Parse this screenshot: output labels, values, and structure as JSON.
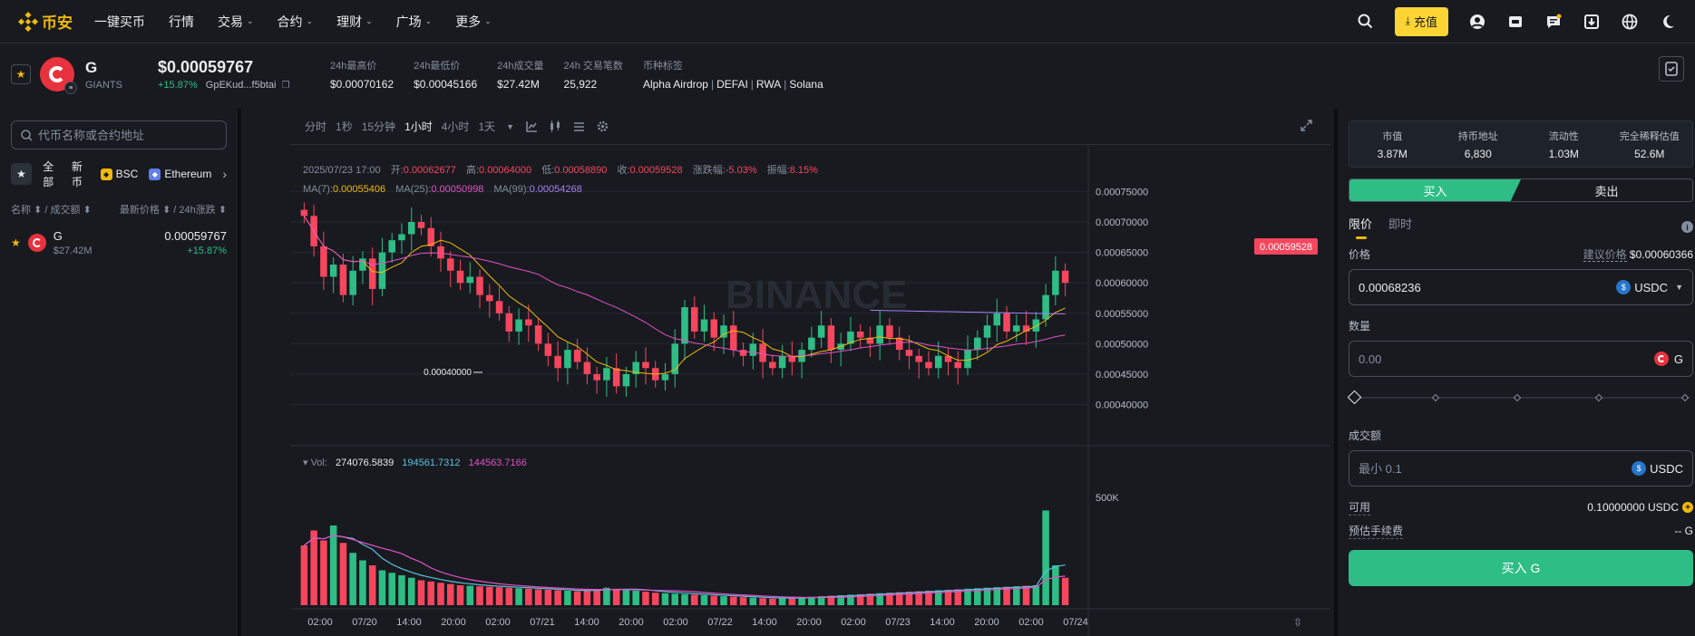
{
  "nav": {
    "logo": "币安",
    "items": [
      {
        "label": "一键买币",
        "chev": false
      },
      {
        "label": "行情",
        "chev": false
      },
      {
        "label": "交易",
        "chev": true
      },
      {
        "label": "合约",
        "chev": true
      },
      {
        "label": "理财",
        "chev": true
      },
      {
        "label": "广场",
        "chev": true
      },
      {
        "label": "更多",
        "chev": true
      }
    ],
    "deposit": "充值",
    "icons": [
      "search-icon",
      "user-icon",
      "wallet-icon",
      "message-icon",
      "download-icon",
      "globe-icon",
      "moon-icon"
    ],
    "accent": "#fcd535"
  },
  "ticker": {
    "symbol": "G",
    "name": "GIANTS",
    "price": "$0.00059767",
    "change": "+15.87%",
    "address": "GpEKud...f5btai",
    "stats": [
      {
        "label": "24h最高价",
        "value": "$0.00070162"
      },
      {
        "label": "24h最低价",
        "value": "$0.00045166"
      },
      {
        "label": "24h成交量",
        "value": "$27.42M"
      },
      {
        "label": "24h 交易笔数",
        "value": "25,922"
      }
    ],
    "tags_label": "币种标签",
    "tags": [
      "Alpha Airdrop",
      "DEFAI",
      "RWA",
      "Solana"
    ]
  },
  "left": {
    "search_placeholder": "代币名称或合约地址",
    "filters": [
      "全部",
      "新币",
      "BSC",
      "Ethereum"
    ],
    "head_left": "名称 ⬍ / 成交额 ⬍",
    "head_right": "最新价格 ⬍ / 24h涨跌 ⬍",
    "rows": [
      {
        "symbol": "G",
        "volume": "$27.42M",
        "price": "0.00059767",
        "change": "+15.87%"
      }
    ]
  },
  "chart": {
    "timeframes": [
      "分时",
      "1秒",
      "15分钟",
      "1小时",
      "4小时",
      "1天"
    ],
    "active_tf": "1小时",
    "info": {
      "date": "2025/07/23 17:00",
      "open_label": "开:",
      "open": "0.00062677",
      "high_label": "高:",
      "high": "0.00064000",
      "low_label": "低:",
      "low": "0.00058890",
      "close_label": "收:",
      "close": "0.00059528",
      "chg_label": "涨跌幅:",
      "chg": "-5.03%",
      "amp_label": "振幅:",
      "amp": "8.15%"
    },
    "ma": [
      {
        "label": "MA(7):",
        "value": "0.00055406",
        "color": "#f0b90b"
      },
      {
        "label": "MA(25):",
        "value": "0.00050998",
        "color": "#e252c6"
      },
      {
        "label": "MA(99):",
        "value": "0.00054268",
        "color": "#a880f8"
      }
    ],
    "vol": {
      "label": "Vol:",
      "v1": "274076.5839",
      "v2": "194561.7312",
      "v3": "144563.7166"
    },
    "low_marker": "0.00040000",
    "current_price": "0.00059528",
    "watermark": "BINANCE"
  },
  "chart_data": {
    "type": "candlestick",
    "price_axis": [
      "0.00075000",
      "0.00070000",
      "0.00065000",
      "0.00060000",
      "0.00055000",
      "0.00050000",
      "0.00045000",
      "0.00040000"
    ],
    "volume_axis": [
      "500K"
    ],
    "x_labels": [
      "02:00",
      "07/20",
      "14:00",
      "20:00",
      "02:00",
      "07/21",
      "14:00",
      "20:00",
      "02:00",
      "07/22",
      "14:00",
      "20:00",
      "02:00",
      "07/23",
      "14:00",
      "20:00",
      "02:00",
      "07/24"
    ],
    "close": [
      0.00071,
      0.00066,
      0.00061,
      0.00063,
      0.00058,
      0.00062,
      0.00064,
      0.00059,
      0.00065,
      0.00067,
      0.00068,
      0.0007,
      0.00069,
      0.00066,
      0.00064,
      0.00062,
      0.0006,
      0.00061,
      0.00058,
      0.00057,
      0.00055,
      0.00052,
      0.00054,
      0.00053,
      0.0005,
      0.00048,
      0.00046,
      0.00049,
      0.00047,
      0.00045,
      0.00044,
      0.00046,
      0.00043,
      0.00045,
      0.00047,
      0.00046,
      0.00044,
      0.00045,
      0.0005,
      0.00056,
      0.00052,
      0.00054,
      0.00051,
      0.00053,
      0.00049,
      0.00048,
      0.0005,
      0.00047,
      0.00046,
      0.00048,
      0.00047,
      0.00049,
      0.00051,
      0.00053,
      0.00049,
      0.0005,
      0.00052,
      0.00051,
      0.0005,
      0.00053,
      0.00051,
      0.00049,
      0.00048,
      0.00047,
      0.00046,
      0.00048,
      0.00047,
      0.00046,
      0.00049,
      0.00051,
      0.00053,
      0.00055,
      0.00052,
      0.00053,
      0.00052,
      0.00054,
      0.00058,
      0.00062,
      0.0006
    ],
    "volume_k": [
      240,
      300,
      260,
      320,
      250,
      210,
      180,
      160,
      140,
      130,
      120,
      110,
      100,
      95,
      90,
      85,
      80,
      78,
      76,
      74,
      72,
      70,
      68,
      66,
      64,
      62,
      60,
      58,
      56,
      60,
      64,
      70,
      66,
      62,
      58,
      54,
      50,
      48,
      46,
      44,
      42,
      40,
      38,
      36,
      34,
      32,
      30,
      28,
      26,
      28,
      30,
      32,
      34,
      36,
      38,
      40,
      42,
      44,
      46,
      48,
      50,
      52,
      54,
      56,
      58,
      60,
      62,
      64,
      66,
      68,
      70,
      72,
      74,
      76,
      78,
      80,
      380,
      160,
      110
    ],
    "ma7_color": "#f0b90b",
    "ma25_color": "#e252c6",
    "ma99_color": "#a880f8",
    "up_color": "#2ebd85",
    "down_color": "#f6465d"
  },
  "right": {
    "stats": [
      {
        "label": "市值",
        "value": "3.87M"
      },
      {
        "label": "持币地址",
        "value": "6,830"
      },
      {
        "label": "流动性",
        "value": "1.03M"
      },
      {
        "label": "完全稀释估值",
        "value": "52.6M"
      }
    ],
    "buy_tab": "买入",
    "sell_tab": "卖出",
    "order_tabs": [
      "限价",
      "即时"
    ],
    "price_label": "价格",
    "suggest_label": "建议价格",
    "suggest_value": "$0.00060366",
    "price_value": "0.00068236",
    "price_currency": "USDC",
    "qty_label": "数量",
    "qty_placeholder": "0.00",
    "qty_currency": "G",
    "amount_label": "成交额",
    "amount_placeholder": "最小 0.1",
    "amount_currency": "USDC",
    "available_label": "可用",
    "available_value": "0.10000000 USDC",
    "fee_label": "预估手续费",
    "fee_value": "-- G",
    "buy_button": "买入 G"
  }
}
